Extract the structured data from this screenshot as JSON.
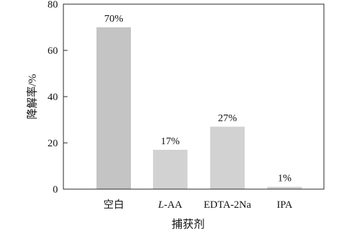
{
  "chart_data": {
    "type": "bar",
    "title": "",
    "xlabel": "捕获剂",
    "ylabel": "降解率/%",
    "categories": [
      "空白",
      "L-AA",
      "EDTA-2Na",
      "IPA"
    ],
    "values": [
      70,
      17,
      27,
      1
    ],
    "data_labels": [
      "70%",
      "17%",
      "27%",
      "1%"
    ],
    "ylim": [
      0,
      80
    ],
    "yticks": [
      0,
      20,
      40,
      60,
      80
    ],
    "grid": false,
    "legend": "none",
    "colors": [
      "#c4c4c4",
      "#d2d2d2",
      "#d2d2d2",
      "#d2d2d2"
    ]
  }
}
